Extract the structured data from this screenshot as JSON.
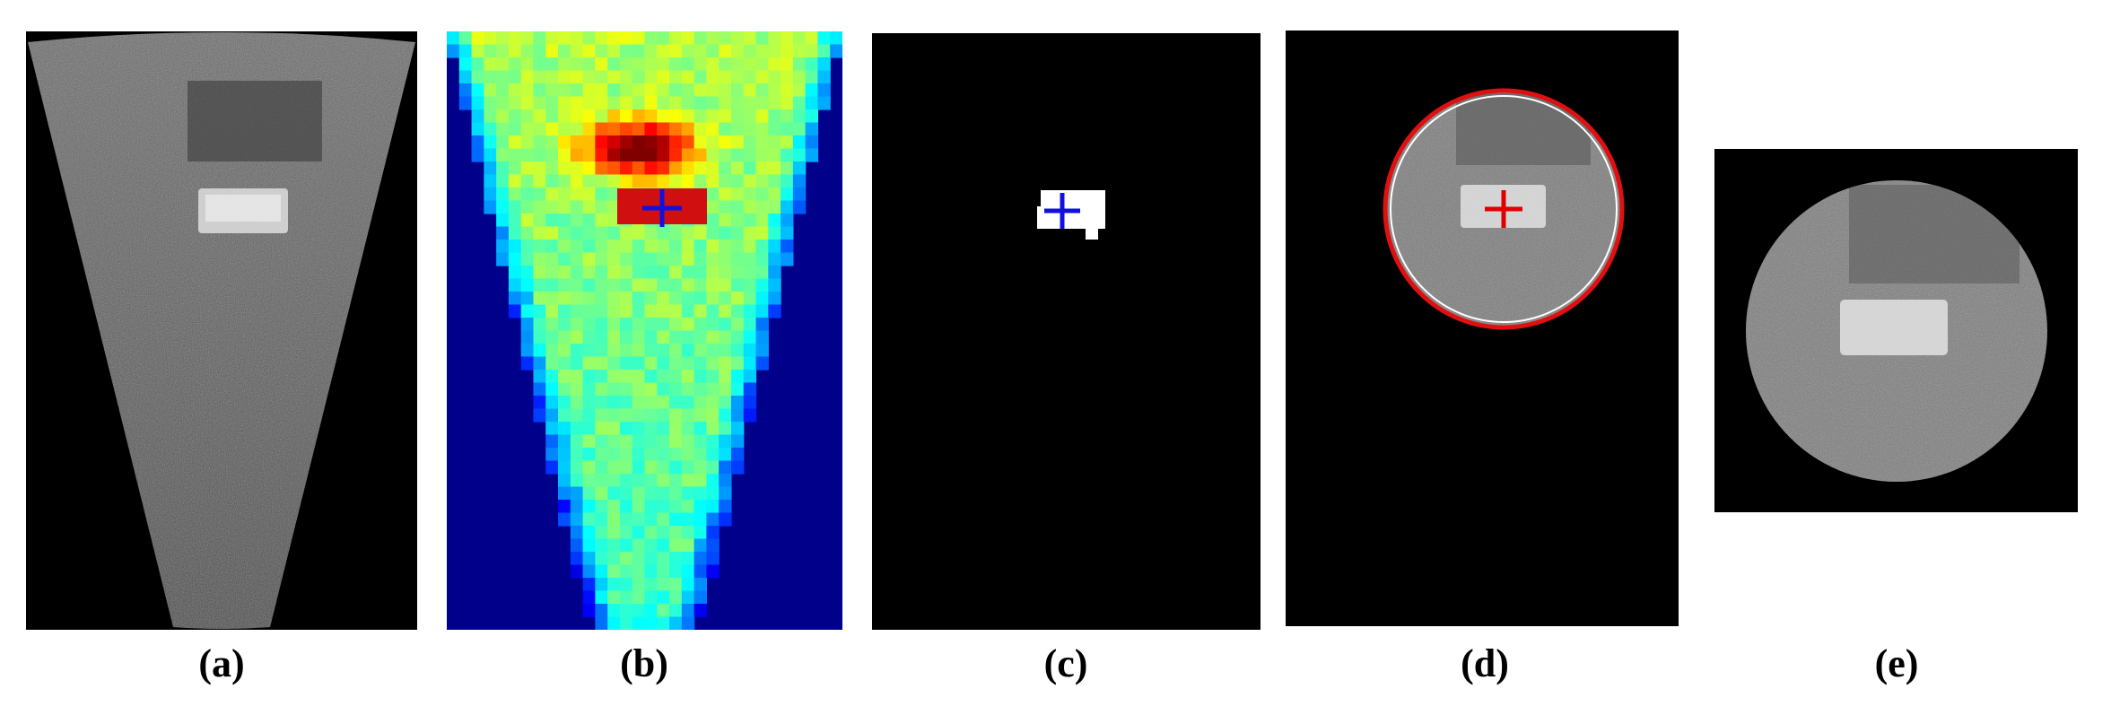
{
  "figure": {
    "panels": [
      {
        "id": "a",
        "caption": "(a)",
        "content": "sonar-fan-image"
      },
      {
        "id": "b",
        "caption": "(b)",
        "content": "heatmap-with-target-cross"
      },
      {
        "id": "c",
        "caption": "(c)",
        "content": "binary-target-mask"
      },
      {
        "id": "d",
        "caption": "(d)",
        "content": "circle-crop-region"
      },
      {
        "id": "e",
        "caption": "(e)",
        "content": "cropped-circular-patch"
      }
    ],
    "colors": {
      "heatmap_bg": "#00008b",
      "cross_blue": "#1010e0",
      "cross_red": "#e00000",
      "circle_red": "#e01010",
      "hot_red": "#d01010",
      "mask_white": "#ffffff",
      "background_black": "#000000"
    }
  }
}
